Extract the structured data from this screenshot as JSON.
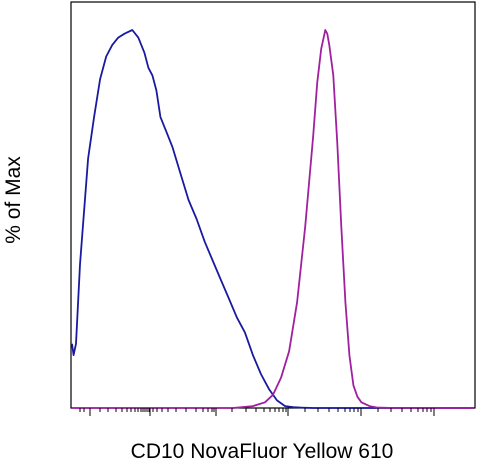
{
  "chart_data": {
    "type": "line",
    "title": "",
    "xlabel": "CD10 NovaFluor Yellow 610",
    "ylabel": "% of Max",
    "xlim": [
      0,
      1
    ],
    "ylim": [
      0,
      100
    ],
    "x_scale": "biexponential",
    "y_ticks_shown": false,
    "x_tick_labels_shown": false,
    "grid": false,
    "legend": "none",
    "series": [
      {
        "color": "#1a1aa0",
        "x": [
          0.0,
          0.004,
          0.01,
          0.02,
          0.04,
          0.055,
          0.07,
          0.085,
          0.1,
          0.115,
          0.13,
          0.15,
          0.165,
          0.18,
          0.19,
          0.2,
          0.21,
          0.22,
          0.235,
          0.25,
          0.27,
          0.29,
          0.31,
          0.33,
          0.35,
          0.37,
          0.39,
          0.41,
          0.43,
          0.45,
          0.47,
          0.49,
          0.51,
          0.53,
          0.55,
          0.57,
          0.6,
          0.65,
          0.7,
          0.75,
          0.8,
          0.85,
          0.9,
          0.95,
          1.0
        ],
        "y": [
          17,
          14,
          17,
          38,
          66,
          77,
          87,
          93,
          96,
          98,
          99,
          100,
          98,
          94,
          90,
          88,
          84,
          77,
          73,
          69,
          62,
          55,
          50,
          44,
          39,
          34,
          29,
          24,
          20,
          14,
          9,
          5,
          2,
          0.5,
          0.2,
          0.1,
          0,
          0,
          0,
          0,
          0,
          0,
          0,
          0,
          0
        ]
      },
      {
        "color": "#a020a0",
        "x": [
          0.0,
          0.3,
          0.4,
          0.45,
          0.48,
          0.5,
          0.52,
          0.54,
          0.56,
          0.58,
          0.6,
          0.61,
          0.62,
          0.63,
          0.635,
          0.64,
          0.65,
          0.66,
          0.67,
          0.68,
          0.69,
          0.7,
          0.71,
          0.72,
          0.74,
          0.76,
          0.8,
          0.85,
          0.9,
          1.0
        ],
        "y": [
          0,
          0,
          0,
          0.5,
          1.5,
          3.5,
          8,
          15,
          28,
          48,
          72,
          86,
          95,
          100,
          99,
          96,
          88,
          70,
          48,
          28,
          14,
          6,
          3,
          1.5,
          0.5,
          0.1,
          0,
          0,
          0,
          0
        ]
      }
    ]
  }
}
